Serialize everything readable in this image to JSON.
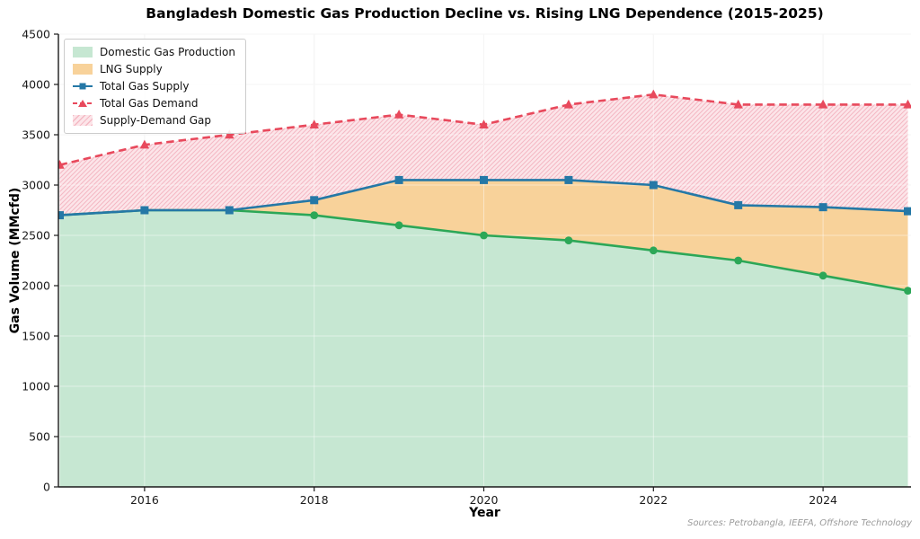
{
  "title": "Bangladesh Domestic Gas Production Decline vs. Rising LNG Dependence (2015-2025)",
  "source_note": "Sources: Petrobangla, IEEFA, Offshore Technology",
  "chart_data": {
    "type": "area",
    "title": "Bangladesh Domestic Gas Production Decline vs. Rising LNG Dependence (2015-2025)",
    "xlabel": "Year",
    "ylabel": "Gas Volume (MMcfd)",
    "x": [
      2015,
      2016,
      2017,
      2018,
      2019,
      2020,
      2021,
      2022,
      2023,
      2024,
      2025
    ],
    "xticks": [
      2016,
      2018,
      2020,
      2022,
      2024
    ],
    "ylim": [
      0,
      4500
    ],
    "yticks": [
      0,
      500,
      1000,
      1500,
      2000,
      2500,
      3000,
      3500,
      4000,
      4500
    ],
    "grid": true,
    "legend_position": "upper-left",
    "series": [
      {
        "key": "domestic",
        "name": "Domestic Gas Production",
        "type": "area",
        "values": [
          2700,
          2750,
          2750,
          2700,
          2600,
          2500,
          2450,
          2350,
          2250,
          2100,
          1950
        ],
        "fill": "#c6e7d2",
        "line_color": "#2ca757",
        "marker": "circle",
        "line_style": "solid"
      },
      {
        "key": "lng",
        "name": "LNG Supply",
        "type": "area-stacked",
        "values": [
          0,
          0,
          0,
          150,
          450,
          550,
          600,
          650,
          550,
          680,
          790
        ],
        "fill": "#f8d29a"
      },
      {
        "key": "total",
        "name": "Total Gas Supply",
        "type": "line",
        "values": [
          2700,
          2750,
          2750,
          2850,
          3050,
          3050,
          3050,
          3000,
          2800,
          2780,
          2740
        ],
        "line_color": "#2578a6",
        "marker": "square",
        "line_style": "solid"
      },
      {
        "key": "demand",
        "name": "Total Gas Demand",
        "type": "line",
        "values": [
          3200,
          3400,
          3500,
          3600,
          3700,
          3600,
          3800,
          3900,
          3800,
          3800,
          3800
        ],
        "line_color": "#e8495c",
        "marker": "triangle",
        "line_style": "dashed"
      },
      {
        "key": "gap",
        "name": "Supply-Demand Gap",
        "type": "band",
        "between": [
          "total",
          "demand"
        ],
        "values": [
          500,
          650,
          750,
          750,
          650,
          550,
          750,
          900,
          1000,
          1020,
          1060
        ],
        "fill": "#fce5e9",
        "hatch_color": "#f4b9c4"
      }
    ],
    "colors": {
      "axis": "#1a1a1a",
      "grid_on_white": "#ececec",
      "grid_on_fill": "rgba(255,255,255,0.45)",
      "tick_label": "#1a1a1a",
      "background": "#ffffff"
    }
  }
}
